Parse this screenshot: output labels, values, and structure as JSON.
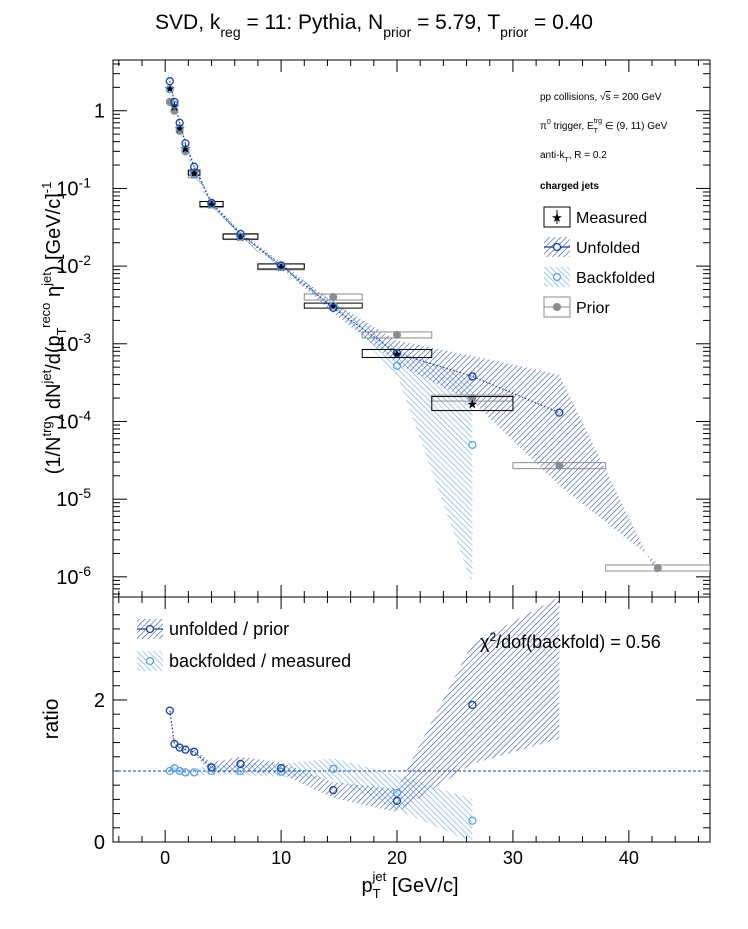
{
  "title": "SVD, k_reg = 11: Pythia, N_prior = 5.79, T_prior = 0.40",
  "title_parts": {
    "a": "SVD, k",
    "a_sub": "reg",
    "b": " = 11: Pythia, N",
    "b_sub": "prior",
    "c": " = 5.79, T",
    "c_sub": "prior",
    "d": " = 0.40"
  },
  "annotations": {
    "collisions": "pp collisions, √s = 200 GeV",
    "trigger": "π⁰ trigger, E_T^trg ∈ (9, 11) GeV",
    "algo": "anti-k_T, R = 0.2",
    "jets": "charged jets",
    "chi2": "χ²/dof(backfold) = 0.56"
  },
  "colors": {
    "measured": "#000000",
    "unfolded": "#1a3fa0",
    "backfolded": "#5aa0e0",
    "prior": "#8c8c8c"
  },
  "chart_data": [
    {
      "type": "scatter",
      "title": "SVD, k_reg = 11: Pythia, N_prior = 5.79, T_prior = 0.40",
      "ylabel": "(1/N^trg) dN^jet/d(p_T^reco η^jet) [GeV/c]^-1",
      "yscale": "log",
      "xlim": [
        -4.5,
        47
      ],
      "ylim": [
        5.5e-07,
        4.5
      ],
      "y_ticks": [
        "1",
        "10^-1",
        "10^-2",
        "10^-3",
        "10^-4",
        "10^-5",
        "10^-6"
      ],
      "legend_position": "top-right",
      "legend": [
        "Measured",
        "Unfolded",
        "Backfolded",
        "Prior"
      ],
      "bins": [
        [
          0.2,
          0.6
        ],
        [
          0.6,
          1
        ],
        [
          1,
          1.5
        ],
        [
          1.5,
          2
        ],
        [
          2,
          3
        ],
        [
          3,
          5
        ],
        [
          5,
          8
        ],
        [
          8,
          12
        ],
        [
          12,
          17
        ],
        [
          17,
          23
        ],
        [
          23,
          30
        ],
        [
          30,
          38
        ],
        [
          38,
          47
        ]
      ],
      "x": [
        0.4,
        0.8,
        1.25,
        1.75,
        2.5,
        4,
        6.5,
        10,
        14.5,
        20,
        26.5,
        34,
        42.5
      ],
      "series": [
        {
          "name": "Measured",
          "values": [
            1.95,
            1.15,
            0.6,
            0.33,
            0.16,
            0.063,
            0.024,
            0.0099,
            0.0031,
            0.00075,
            0.00017,
            null,
            null
          ]
        },
        {
          "name": "Unfolded",
          "values": [
            2.4,
            1.3,
            0.7,
            0.38,
            0.19,
            0.065,
            0.026,
            0.0102,
            0.0029,
            0.00076,
            0.00038,
            0.00013,
            null
          ],
          "band_low": [
            2.2,
            1.2,
            0.65,
            0.35,
            0.17,
            0.06,
            0.024,
            0.0095,
            0.0025,
            0.00055,
            0.00018,
            1.5e-05,
            1.5e-06
          ],
          "band_high": [
            2.6,
            1.4,
            0.75,
            0.41,
            0.21,
            0.07,
            0.028,
            0.011,
            0.0034,
            0.0011,
            0.0007,
            0.0004,
            1e-06
          ]
        },
        {
          "name": "Backfolded",
          "values": [
            1.9,
            1.2,
            0.6,
            0.31,
            0.155,
            0.063,
            0.024,
            0.0098,
            0.0031,
            0.00052,
            5e-05,
            null,
            null
          ],
          "band_low": [
            1.8,
            1.1,
            0.56,
            0.29,
            0.145,
            0.059,
            0.022,
            0.0092,
            0.0028,
            0.0004,
            8e-07,
            null,
            null
          ],
          "band_high": [
            2.0,
            1.3,
            0.64,
            0.33,
            0.165,
            0.067,
            0.026,
            0.0105,
            0.0035,
            0.00085,
            0.00035,
            null,
            null
          ]
        },
        {
          "name": "Prior",
          "values": [
            1.3,
            1.0,
            0.55,
            0.3,
            0.15,
            0.062,
            0.024,
            0.0098,
            0.004,
            0.0013,
            0.0002,
            2.7e-05,
            1.3e-06
          ]
        }
      ]
    },
    {
      "type": "scatter",
      "xlabel": "p_T^jet [GeV/c]",
      "ylabel": "ratio",
      "xlim": [
        -4.5,
        47
      ],
      "ylim": [
        0,
        3.45
      ],
      "x_ticks": [
        0,
        10,
        20,
        30,
        40
      ],
      "y_ticks": [
        0,
        2
      ],
      "reference_line": 1,
      "legend_position": "top-left",
      "x": [
        0.4,
        0.8,
        1.25,
        1.75,
        2.5,
        4,
        6.5,
        10,
        14.5,
        20,
        26.5,
        34,
        42.5
      ],
      "series": [
        {
          "name": "unfolded / prior",
          "values": [
            1.85,
            1.38,
            1.33,
            1.3,
            1.27,
            1.05,
            1.1,
            1.04,
            0.73,
            0.58,
            1.93,
            null,
            null
          ],
          "band_low": [
            1.8,
            1.34,
            1.29,
            1.26,
            1.23,
            0.98,
            0.98,
            0.96,
            0.62,
            0.42,
            1.1,
            1.45,
            null
          ],
          "band_high": [
            1.9,
            1.42,
            1.37,
            1.34,
            1.31,
            1.12,
            1.2,
            1.12,
            0.84,
            0.75,
            2.8,
            3.45,
            null
          ]
        },
        {
          "name": "backfolded / measured",
          "values": [
            1.0,
            1.04,
            1.0,
            0.98,
            0.98,
            1.0,
            1.0,
            0.99,
            1.03,
            0.69,
            0.3,
            null,
            null
          ],
          "band_low": [
            0.95,
            0.98,
            0.95,
            0.93,
            0.93,
            0.95,
            0.94,
            0.92,
            0.88,
            0.45,
            0.0,
            null,
            null
          ],
          "band_high": [
            1.05,
            1.08,
            1.05,
            1.03,
            1.03,
            1.08,
            1.12,
            1.1,
            1.18,
            0.95,
            0.6,
            null,
            null
          ]
        }
      ]
    }
  ]
}
